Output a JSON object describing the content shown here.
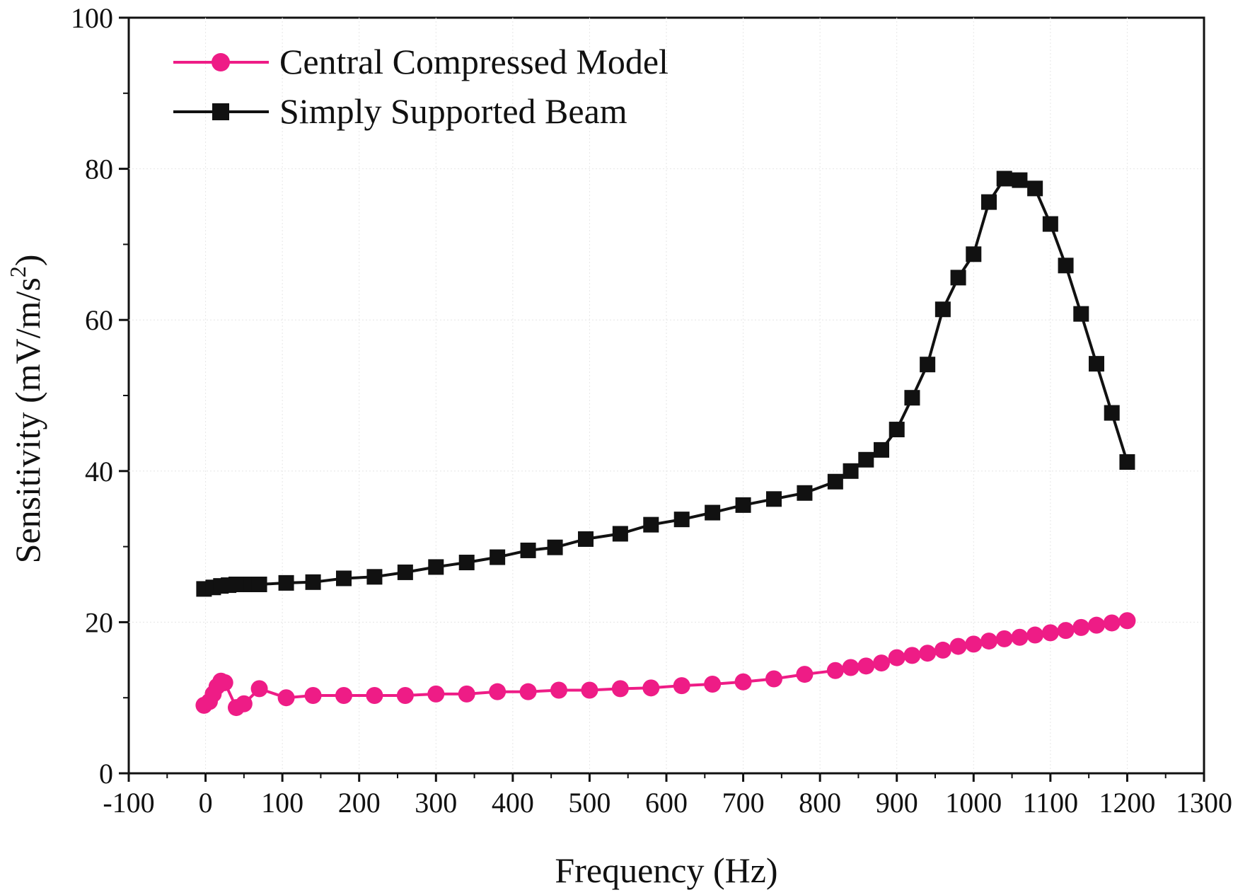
{
  "chart_data": {
    "type": "line",
    "title": "",
    "xlabel": "Frequency (Hz)",
    "ylabel_main": "Sensitivity (mV/m/s",
    "ylabel_sup": "2",
    "ylabel_close": ")",
    "xlim": [
      -100,
      1300
    ],
    "ylim": [
      0,
      100
    ],
    "xticks": [
      -100,
      0,
      100,
      200,
      300,
      400,
      500,
      600,
      700,
      800,
      900,
      1000,
      1100,
      1200,
      1300
    ],
    "xtick_labels": [
      "-100",
      "0",
      "100",
      "200",
      "300",
      "400",
      "500",
      "600",
      "700",
      "800",
      "900",
      "1000",
      "1100",
      "1200",
      "1300"
    ],
    "yticks": [
      0,
      20,
      40,
      60,
      80,
      100
    ],
    "ytick_labels": [
      "0",
      "20",
      "40",
      "60",
      "80",
      "100"
    ],
    "legend_position": "top-left",
    "series": [
      {
        "name": "Central Compressed Model",
        "color": "#ee1c86",
        "marker": "circle",
        "x": [
          -2,
          5,
          10,
          15,
          20,
          25,
          40,
          50,
          70,
          105,
          140,
          180,
          220,
          260,
          300,
          340,
          380,
          420,
          460,
          500,
          540,
          580,
          620,
          660,
          700,
          740,
          780,
          820,
          840,
          860,
          880,
          900,
          920,
          940,
          960,
          980,
          1000,
          1020,
          1040,
          1060,
          1080,
          1100,
          1120,
          1140,
          1160,
          1180,
          1200
        ],
        "y": [
          9.0,
          9.5,
          10.5,
          11.5,
          12.2,
          12.0,
          8.7,
          9.2,
          11.2,
          10.0,
          10.3,
          10.3,
          10.3,
          10.3,
          10.5,
          10.5,
          10.8,
          10.8,
          11.0,
          11.0,
          11.2,
          11.3,
          11.6,
          11.8,
          12.1,
          12.5,
          13.1,
          13.6,
          14.0,
          14.2,
          14.6,
          15.3,
          15.6,
          15.9,
          16.3,
          16.8,
          17.1,
          17.5,
          17.8,
          18.0,
          18.3,
          18.6,
          18.9,
          19.3,
          19.6,
          19.9,
          20.2
        ]
      },
      {
        "name": "Simply Supported Beam",
        "color": "#111111",
        "marker": "square",
        "x": [
          -2,
          10,
          20,
          30,
          40,
          50,
          60,
          70,
          105,
          140,
          180,
          220,
          260,
          300,
          340,
          380,
          420,
          455,
          495,
          540,
          580,
          620,
          660,
          700,
          740,
          780,
          820,
          840,
          860,
          880,
          900,
          920,
          940,
          960,
          980,
          1000,
          1020,
          1040,
          1060,
          1080,
          1100,
          1120,
          1140,
          1160,
          1180,
          1200
        ],
        "y": [
          24.4,
          24.6,
          24.8,
          24.9,
          25.0,
          25.0,
          25.0,
          25.0,
          25.2,
          25.3,
          25.8,
          26.0,
          26.6,
          27.3,
          27.9,
          28.6,
          29.5,
          29.9,
          31.0,
          31.7,
          32.9,
          33.6,
          34.5,
          35.5,
          36.3,
          37.1,
          38.6,
          40.0,
          41.5,
          42.8,
          45.5,
          49.7,
          54.1,
          61.4,
          65.6,
          68.7,
          75.6,
          78.7,
          78.5,
          77.4,
          72.7,
          67.2,
          60.8,
          54.2,
          47.7,
          41.2
        ]
      }
    ]
  }
}
